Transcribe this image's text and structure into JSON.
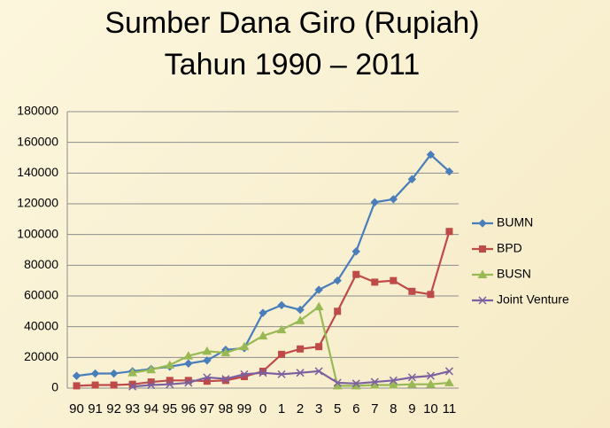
{
  "chart_data": {
    "type": "line",
    "title": [
      "Sumber Dana Giro (Rupiah)",
      "Tahun 1990 – 2011"
    ],
    "categories": [
      "90",
      "91",
      "92",
      "93",
      "94",
      "95",
      "96",
      "97",
      "98",
      "99",
      "0",
      "1",
      "2",
      "3",
      "5",
      "6",
      "7",
      "8",
      "9",
      "10",
      "11"
    ],
    "series": [
      {
        "name": "BUMN",
        "color": "#4a7ebb",
        "marker": "diamond",
        "values": [
          8000,
          9500,
          9500,
          11000,
          12500,
          14000,
          16000,
          18000,
          25000,
          26000,
          49000,
          54000,
          51000,
          64000,
          70000,
          89000,
          121000,
          123000,
          136000,
          152000,
          141000
        ]
      },
      {
        "name": "BPD",
        "color": "#be4b48",
        "marker": "square",
        "values": [
          1500,
          2000,
          2000,
          2500,
          4000,
          5000,
          5000,
          4500,
          5000,
          7500,
          11000,
          22000,
          25500,
          27000,
          50000,
          74000,
          69000,
          70000,
          63000,
          61000,
          102000
        ]
      },
      {
        "name": "BUSN",
        "color": "#98b954",
        "marker": "triangle",
        "values": [
          null,
          null,
          null,
          10000,
          12000,
          15000,
          21000,
          24000,
          23000,
          27000,
          34000,
          38000,
          44000,
          53000,
          1500,
          1500,
          2000,
          2000,
          2500,
          2500,
          3500
        ]
      },
      {
        "name": "Joint Venture",
        "color": "#7d60a0",
        "marker": "x",
        "values": [
          null,
          null,
          null,
          1000,
          2000,
          2500,
          3500,
          7000,
          6000,
          9000,
          10000,
          9000,
          10000,
          11000,
          3500,
          3000,
          4000,
          5000,
          7000,
          8000,
          11000
        ]
      }
    ],
    "ylim": [
      0,
      180000
    ],
    "yticks": [
      0,
      20000,
      40000,
      60000,
      80000,
      100000,
      120000,
      140000,
      160000,
      180000
    ],
    "grid": true,
    "legend": "right"
  }
}
